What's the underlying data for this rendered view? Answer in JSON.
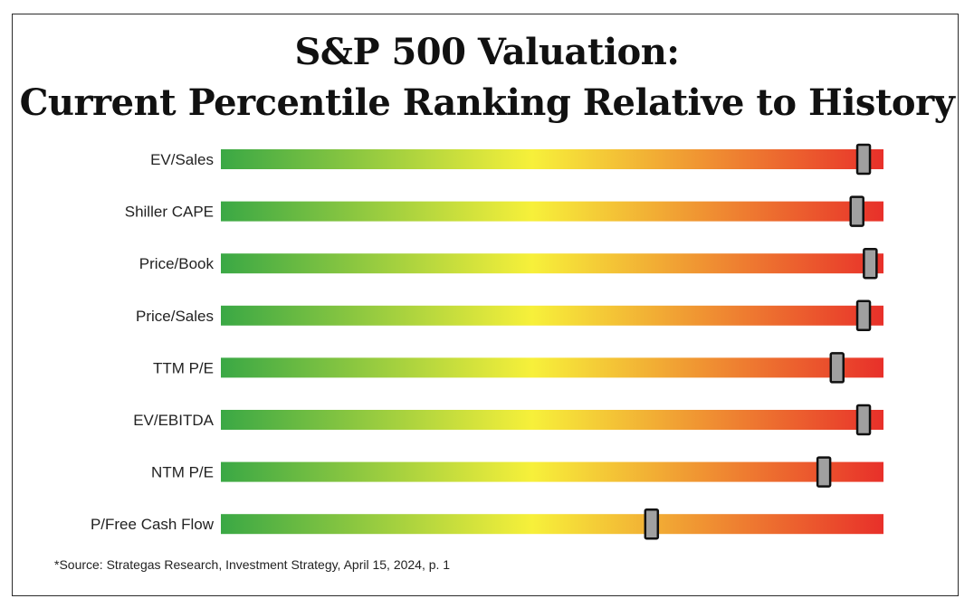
{
  "chart_data": {
    "type": "bar",
    "title_line1": "S&P 500 Valuation:",
    "title_line2": "Current Percentile Ranking Relative to History",
    "categories": [
      "EV/Sales",
      "Shiller CAPE",
      "Price/Book",
      "Price/Sales",
      "TTM P/E",
      "EV/EBITDA",
      "NTM P/E",
      "P/Free Cash Flow"
    ],
    "values": [
      97,
      96,
      98,
      97,
      93,
      97,
      91,
      65
    ],
    "xlim": [
      0,
      100
    ],
    "grid": false,
    "legend": "none",
    "colors": {
      "low": "#3aa845",
      "mid": "#f7f03a",
      "high": "#e8302a",
      "marker": "#a0a0a0",
      "marker_border": "#111111"
    }
  },
  "footnote": "*Source: Strategas Research, Investment Strategy, April 15, 2024, p. 1"
}
